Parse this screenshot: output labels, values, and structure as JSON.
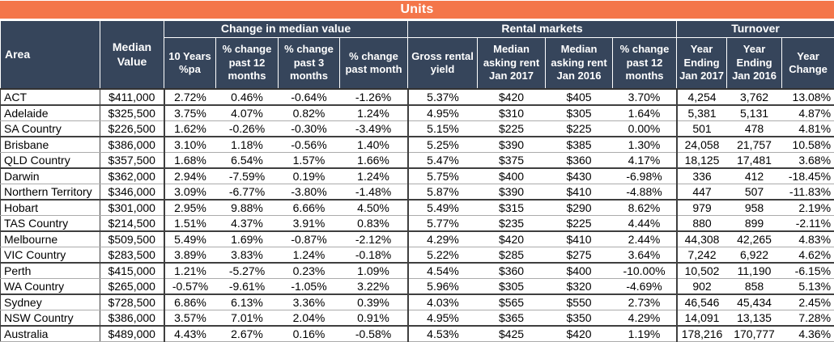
{
  "title": "Units",
  "colors": {
    "accent_orange": "#F4764A",
    "header_bg": "#36455B",
    "header_text": "#ffffff",
    "body_text": "#000000",
    "group_line": "#3f3f3f",
    "row_line": "#ababab"
  },
  "chart_data": {
    "type": "table",
    "title": "Units",
    "header": {
      "area": "Area",
      "median_value": "Median Value",
      "groups": [
        "Change in median value",
        "Rental markets",
        "Turnover"
      ],
      "columns": [
        "10 Years %pa",
        "% change past 12 months",
        "% change past 3 months",
        "% change past month",
        "Gross rental yield",
        "Median asking rent Jan 2017",
        "Median asking rent Jan 2016",
        "% change past 12 months",
        "Year Ending Jan 2017",
        "Year Ending Jan 2016",
        "Year Change"
      ]
    },
    "rows": [
      [
        "ACT",
        "$411,000",
        "2.72%",
        "0.46%",
        "-0.64%",
        "-1.26%",
        "5.37%",
        "$420",
        "$405",
        "3.70%",
        "4,254",
        "3,762",
        "13.08%"
      ],
      [
        "Adelaide",
        "$325,500",
        "3.75%",
        "4.07%",
        "0.82%",
        "1.24%",
        "4.95%",
        "$310",
        "$305",
        "1.64%",
        "5,381",
        "5,131",
        "4.87%"
      ],
      [
        "SA Country",
        "$226,500",
        "1.62%",
        "-0.26%",
        "-0.30%",
        "-3.49%",
        "5.15%",
        "$225",
        "$225",
        "0.00%",
        "501",
        "478",
        "4.81%"
      ],
      [
        "Brisbane",
        "$386,000",
        "3.10%",
        "1.18%",
        "-0.56%",
        "1.40%",
        "5.25%",
        "$390",
        "$385",
        "1.30%",
        "24,058",
        "21,757",
        "10.58%"
      ],
      [
        "QLD Country",
        "$357,500",
        "1.68%",
        "6.54%",
        "1.57%",
        "1.66%",
        "5.47%",
        "$375",
        "$360",
        "4.17%",
        "18,125",
        "17,481",
        "3.68%"
      ],
      [
        "Darwin",
        "$362,000",
        "2.94%",
        "-7.59%",
        "0.19%",
        "1.24%",
        "5.75%",
        "$400",
        "$430",
        "-6.98%",
        "336",
        "412",
        "-18.45%"
      ],
      [
        "Northern Territory",
        "$346,000",
        "3.09%",
        "-6.77%",
        "-3.80%",
        "-1.48%",
        "5.87%",
        "$390",
        "$410",
        "-4.88%",
        "447",
        "507",
        "-11.83%"
      ],
      [
        "Hobart",
        "$301,000",
        "2.95%",
        "9.88%",
        "6.66%",
        "4.50%",
        "5.49%",
        "$315",
        "$290",
        "8.62%",
        "979",
        "958",
        "2.19%"
      ],
      [
        "TAS Country",
        "$214,500",
        "1.51%",
        "4.37%",
        "3.91%",
        "0.83%",
        "5.77%",
        "$235",
        "$225",
        "4.44%",
        "880",
        "899",
        "-2.11%"
      ],
      [
        "Melbourne",
        "$509,500",
        "5.49%",
        "1.69%",
        "-0.87%",
        "-2.12%",
        "4.29%",
        "$420",
        "$410",
        "2.44%",
        "44,308",
        "42,265",
        "4.83%"
      ],
      [
        "VIC Country",
        "$283,500",
        "3.89%",
        "3.83%",
        "1.24%",
        "-0.18%",
        "5.22%",
        "$285",
        "$275",
        "3.64%",
        "7,242",
        "6,922",
        "4.62%"
      ],
      [
        "Perth",
        "$415,000",
        "1.21%",
        "-5.27%",
        "0.23%",
        "1.09%",
        "4.54%",
        "$360",
        "$400",
        "-10.00%",
        "10,502",
        "11,190",
        "-6.15%"
      ],
      [
        "WA Country",
        "$265,000",
        "-0.57%",
        "-9.61%",
        "-1.05%",
        "3.22%",
        "5.96%",
        "$305",
        "$320",
        "-4.69%",
        "902",
        "858",
        "5.13%"
      ],
      [
        "Sydney",
        "$728,500",
        "6.86%",
        "6.13%",
        "3.36%",
        "0.39%",
        "4.03%",
        "$565",
        "$550",
        "2.73%",
        "46,546",
        "45,434",
        "2.45%"
      ],
      [
        "NSW Country",
        "$386,000",
        "3.57%",
        "7.01%",
        "2.04%",
        "0.91%",
        "4.95%",
        "$365",
        "$350",
        "4.29%",
        "14,091",
        "13,135",
        "7.28%"
      ],
      [
        "Australia",
        "$489,000",
        "4.43%",
        "2.67%",
        "0.16%",
        "-0.58%",
        "4.53%",
        "$425",
        "$420",
        "1.19%",
        "178,216",
        "170,777",
        "4.36%"
      ]
    ],
    "group_end_row_indices": [
      0,
      2,
      4,
      6,
      8,
      10,
      12,
      14
    ]
  }
}
